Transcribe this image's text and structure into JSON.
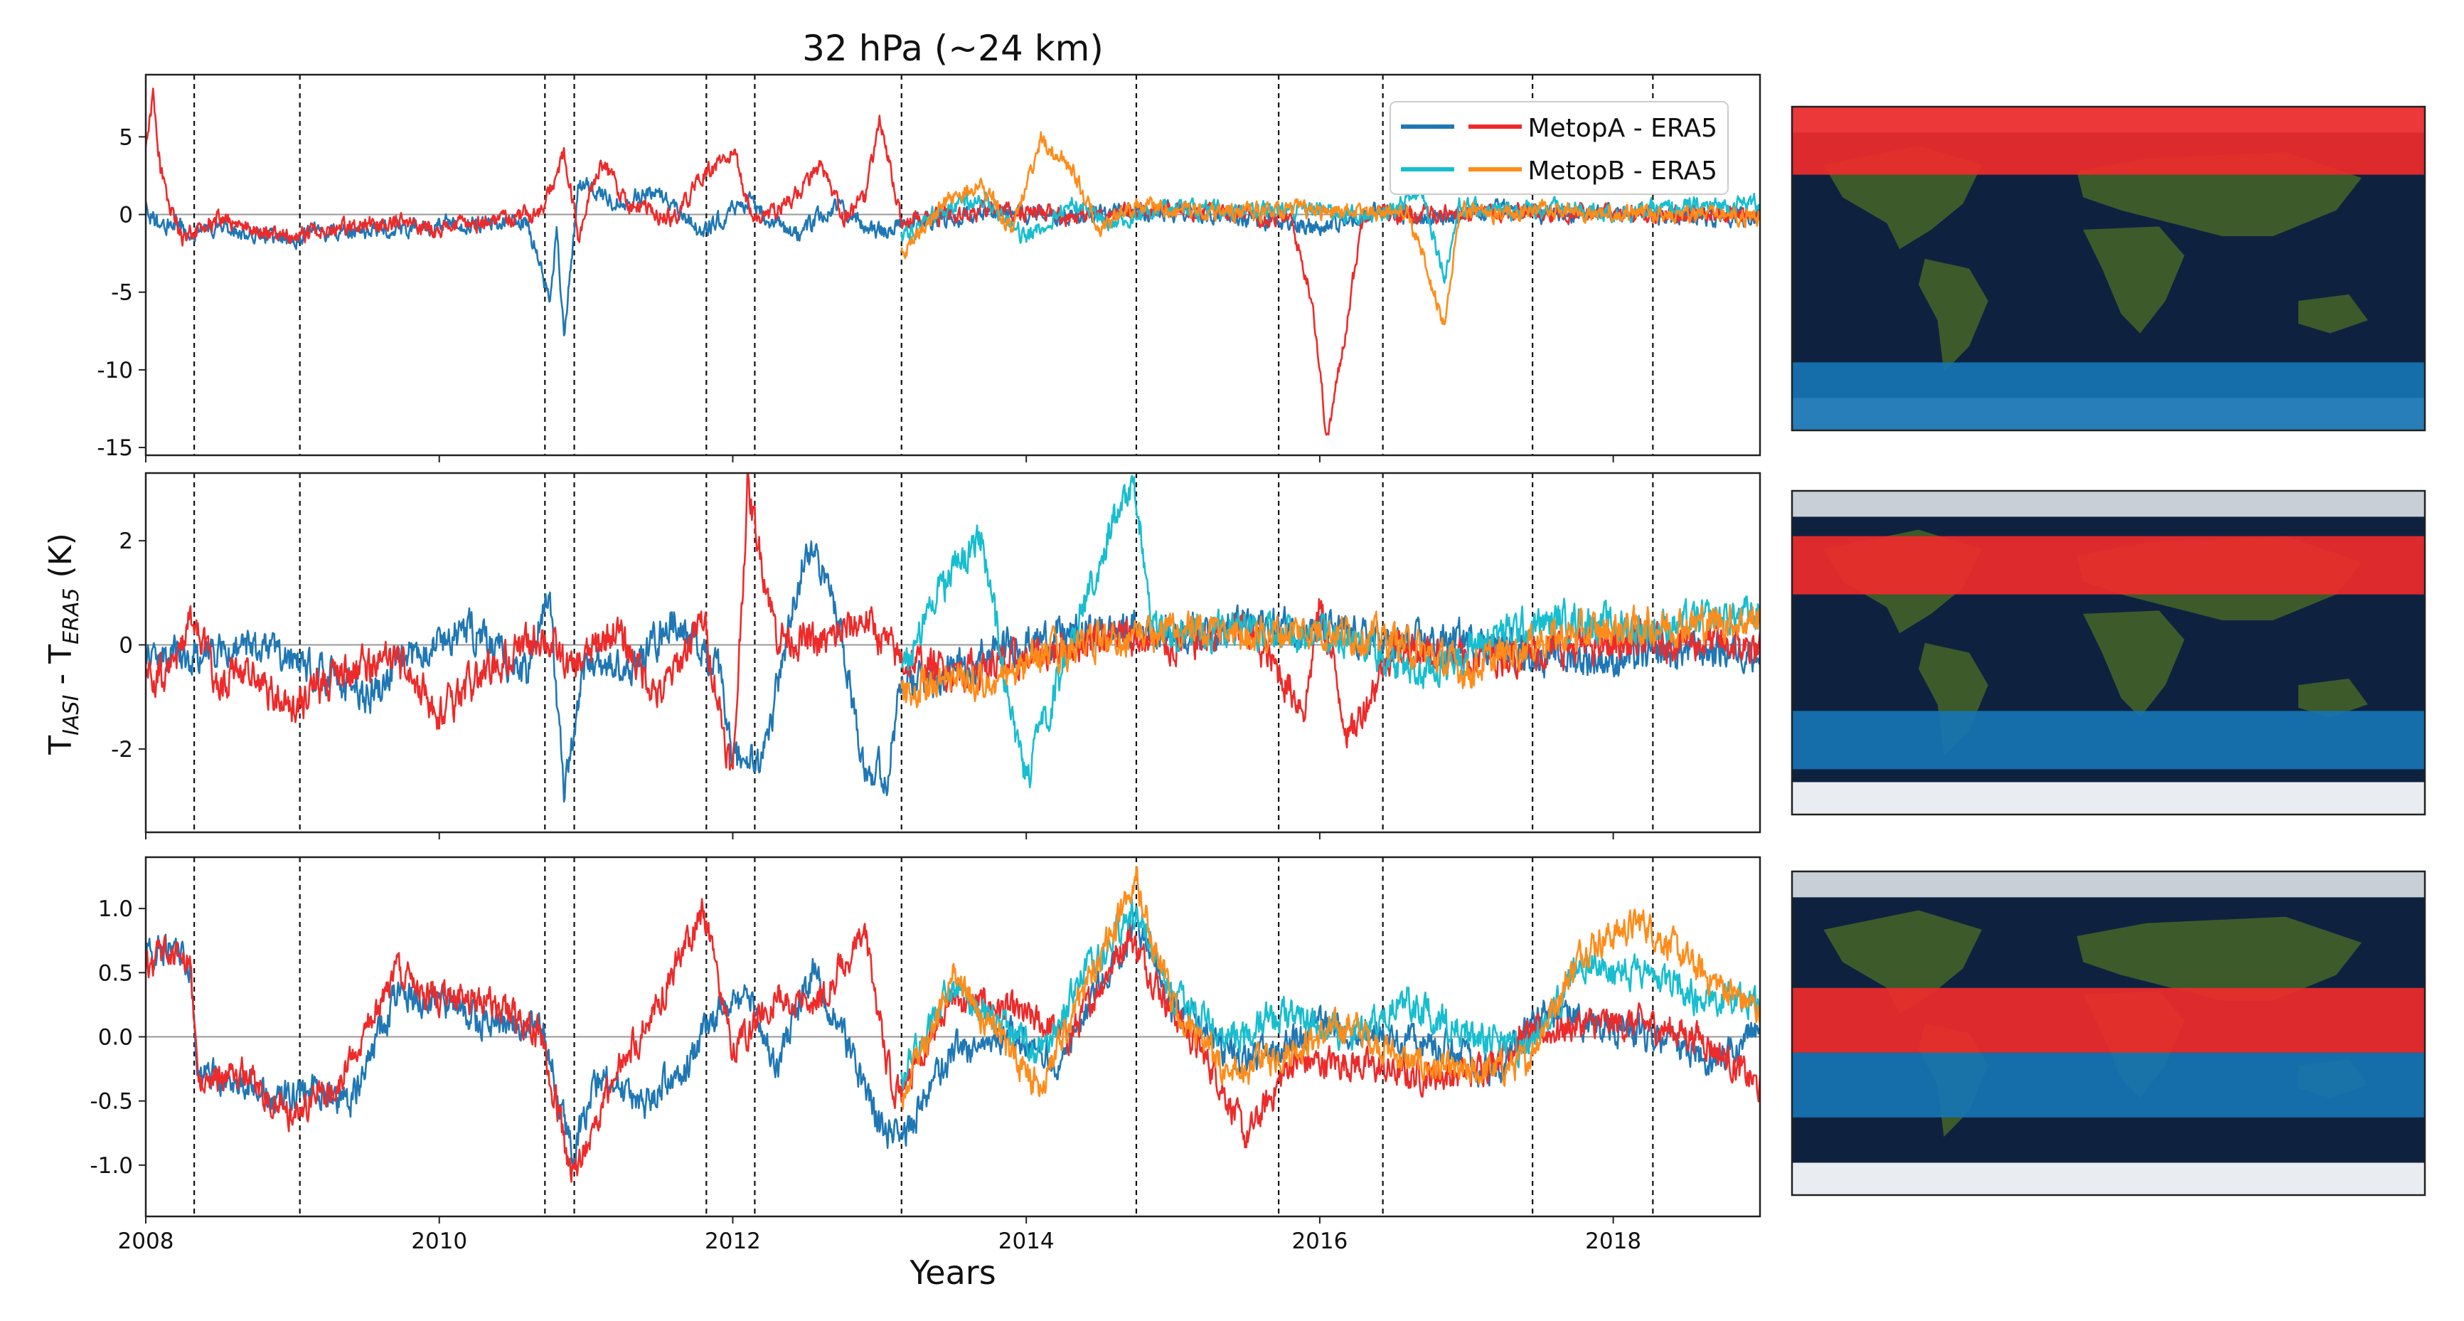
{
  "colors": {
    "metopA_ta": "#1f77b4",
    "metopA_ec": "#ee2a2a",
    "metopB_ta": "#17becf",
    "metopB_ec": "#ff8c1a",
    "zero_line": "#999999",
    "dashed": "#111111",
    "ocean": "#0e2240",
    "land": "#3d5a2b",
    "ice": "#e9edf2",
    "band_red": "#ef2b2b",
    "band_blue": "#1674b3"
  },
  "chart_data": {
    "type": "line",
    "title": "32 hPa (~24 km)",
    "xlabel": "Years",
    "ylabel_main": "T",
    "ylabel_sub1": "IASI",
    "ylabel_mid": " - T",
    "ylabel_sub2": "ERA5",
    "ylabel_unit": " (K)",
    "xlim": [
      2008.0,
      2019.0
    ],
    "xticks": [
      2008,
      2010,
      2012,
      2014,
      2016,
      2018
    ],
    "xtick_labels": [
      "2008",
      "2010",
      "2012",
      "2014",
      "2016",
      "2018"
    ],
    "event_lines": [
      2008.33,
      2009.05,
      2010.72,
      2010.92,
      2011.82,
      2012.15,
      2013.15,
      2014.75,
      2015.72,
      2016.43,
      2017.45,
      2018.27
    ],
    "legend": {
      "position": "top-right of panel 1",
      "entries": [
        {
          "label": "MetopA - ERA5",
          "colors": [
            "#1f77b4",
            "#ee2a2a"
          ]
        },
        {
          "label": "MetopB - ERA5",
          "colors": [
            "#17becf",
            "#ff8c1a"
          ]
        }
      ]
    },
    "panels": [
      {
        "name": "panel-1",
        "region": "north polar (red) and south polar (blue) bands",
        "ylim": [
          -15.5,
          9.0
        ],
        "yticks": [
          -15,
          -10,
          -5,
          0,
          5
        ],
        "ytick_labels": [
          "-15",
          "-10",
          "-5",
          "0",
          "5"
        ],
        "series": [
          {
            "name": "MetopA blue",
            "color": "#1f77b4",
            "x": [
              2008.0,
              2008.1,
              2008.2,
              2008.3,
              2008.5,
              2008.7,
              2008.9,
              2009.1,
              2009.4,
              2009.7,
              2010.0,
              2010.3,
              2010.6,
              2010.75,
              2010.8,
              2010.85,
              2010.95,
              2011.2,
              2011.5,
              2011.8,
              2012.1,
              2012.4,
              2012.7,
              2013.0,
              2013.15,
              2013.4,
              2013.8,
              2014.2,
              2014.6,
              2014.9,
              2015.3,
              2015.7,
              2016.0,
              2016.4,
              2016.8,
              2017.2,
              2017.6,
              2018.0,
              2018.4,
              2018.8,
              2019.0
            ],
            "values": [
              0.5,
              -1.0,
              -0.5,
              -1.3,
              -0.8,
              -1.0,
              -1.8,
              -1.2,
              -1.1,
              -0.9,
              -0.6,
              -0.7,
              -0.4,
              -5.5,
              -1.0,
              -8.0,
              2.0,
              0.8,
              1.5,
              -1.2,
              1.0,
              -1.5,
              0.5,
              -1.2,
              -0.5,
              -0.3,
              0.2,
              -0.3,
              0.2,
              0.1,
              0.0,
              -0.5,
              -0.8,
              0.3,
              -0.3,
              0.4,
              0.0,
              0.1,
              -0.1,
              -0.2,
              0.0
            ]
          },
          {
            "name": "MetopA red",
            "color": "#ee2a2a",
            "x": [
              2008.0,
              2008.05,
              2008.1,
              2008.15,
              2008.25,
              2008.5,
              2008.7,
              2009.0,
              2009.3,
              2009.6,
              2010.0,
              2010.4,
              2010.7,
              2010.85,
              2010.95,
              2011.1,
              2011.3,
              2011.6,
              2011.8,
              2012.0,
              2012.15,
              2012.4,
              2012.6,
              2012.75,
              2012.9,
              2013.0,
              2013.15,
              2013.4,
              2013.8,
              2014.3,
              2014.7,
              2015.1,
              2015.5,
              2015.8,
              2015.95,
              2016.05,
              2016.15,
              2016.3,
              2016.6,
              2017.0,
              2017.5,
              2018.0,
              2018.5,
              2019.0
            ],
            "values": [
              4.0,
              7.8,
              3.0,
              1.0,
              -1.5,
              -0.3,
              -0.8,
              -1.5,
              -0.8,
              -0.5,
              -0.9,
              -0.3,
              0.2,
              3.8,
              -1.5,
              3.5,
              0.5,
              -0.3,
              2.5,
              4.0,
              -0.5,
              1.0,
              3.0,
              -0.2,
              1.0,
              6.0,
              -0.5,
              -0.2,
              0.3,
              -0.1,
              0.2,
              0.3,
              0.1,
              -0.3,
              -5.5,
              -14.5,
              -9.0,
              0.3,
              -0.1,
              0.2,
              0.1,
              0.0,
              0.1,
              0.0
            ]
          },
          {
            "name": "MetopB cyan",
            "color": "#17becf",
            "x": [
              2013.15,
              2013.4,
              2013.7,
              2014.0,
              2014.3,
              2014.6,
              2014.9,
              2015.3,
              2015.7,
              2016.0,
              2016.4,
              2016.7,
              2016.85,
              2016.95,
              2017.2,
              2017.6,
              2018.0,
              2018.4,
              2018.8,
              2019.0
            ],
            "values": [
              -1.5,
              0.2,
              1.0,
              -1.5,
              0.8,
              -0.5,
              0.4,
              0.3,
              0.2,
              0.3,
              -0.2,
              1.5,
              -4.0,
              0.5,
              0.2,
              0.4,
              0.1,
              0.4,
              0.6,
              0.8
            ]
          },
          {
            "name": "MetopB orange",
            "color": "#ff8c1a",
            "x": [
              2013.15,
              2013.4,
              2013.7,
              2013.9,
              2014.1,
              2014.3,
              2014.5,
              2014.75,
              2015.0,
              2015.4,
              2015.8,
              2016.2,
              2016.6,
              2016.85,
              2016.95,
              2017.1,
              2017.5,
              2018.0,
              2018.5,
              2019.0
            ],
            "values": [
              -2.5,
              0.5,
              2.0,
              -1.0,
              4.8,
              3.0,
              -0.8,
              0.5,
              0.3,
              0.1,
              0.3,
              0.2,
              0.2,
              -7.2,
              0.2,
              0.1,
              0.3,
              0.1,
              0.0,
              -0.1
            ]
          }
        ]
      },
      {
        "name": "panel-2",
        "region": "northern mid-latitude (red) and southern mid-latitude (blue) bands",
        "ylim": [
          -3.6,
          3.3
        ],
        "yticks": [
          -2,
          0,
          2
        ],
        "ytick_labels": [
          "-2",
          "0",
          "2"
        ],
        "series": [
          {
            "name": "MetopA blue",
            "color": "#1f77b4",
            "x": [
              2008.0,
              2008.3,
              2008.7,
              2009.0,
              2009.5,
              2009.9,
              2010.2,
              2010.6,
              2010.75,
              2010.85,
              2011.0,
              2011.3,
              2011.6,
              2011.9,
              2012.0,
              2012.2,
              2012.5,
              2012.7,
              2012.9,
              2013.05,
              2013.15,
              2013.5,
              2013.9,
              2014.3,
              2014.75,
              2015.0,
              2015.5,
              2016.0,
              2016.5,
              2017.0,
              2017.5,
              2018.0,
              2018.5,
              2019.0
            ],
            "values": [
              -0.2,
              -0.2,
              0.0,
              -0.3,
              -1.0,
              0.0,
              0.3,
              -0.6,
              1.2,
              -3.0,
              -0.3,
              -0.5,
              0.5,
              -0.5,
              -2.2,
              -2.3,
              2.0,
              0.8,
              -2.3,
              -2.5,
              -0.8,
              -0.5,
              0.0,
              0.2,
              0.3,
              0.2,
              0.4,
              0.3,
              0.0,
              0.1,
              -0.2,
              -0.3,
              -0.1,
              -0.1
            ]
          },
          {
            "name": "MetopA red",
            "color": "#ee2a2a",
            "x": [
              2008.0,
              2008.2,
              2008.3,
              2008.5,
              2008.7,
              2009.0,
              2009.3,
              2009.7,
              2010.0,
              2010.3,
              2010.7,
              2010.9,
              2011.2,
              2011.5,
              2011.8,
              2012.0,
              2012.1,
              2012.3,
              2012.6,
              2012.9,
              2013.15,
              2013.5,
              2014.0,
              2014.5,
              2015.0,
              2015.5,
              2015.9,
              2016.0,
              2016.2,
              2016.5,
              2017.0,
              2017.5,
              2018.0,
              2018.5,
              2019.0
            ],
            "values": [
              -0.6,
              -0.5,
              0.6,
              -0.7,
              -0.5,
              -1.2,
              -0.6,
              -0.3,
              -1.3,
              -0.6,
              0.2,
              -0.5,
              0.3,
              -1.0,
              0.5,
              -2.6,
              3.0,
              0.2,
              0.0,
              0.5,
              -0.3,
              -0.5,
              -0.3,
              0.2,
              0.0,
              0.3,
              -1.2,
              0.8,
              -1.8,
              0.0,
              -0.3,
              -0.1,
              0.0,
              0.1,
              -0.1
            ]
          },
          {
            "name": "MetopB cyan",
            "color": "#17becf",
            "x": [
              2013.15,
              2013.4,
              2013.7,
              2013.9,
              2014.0,
              2014.3,
              2014.6,
              2014.75,
              2014.85,
              2015.2,
              2015.7,
              2016.2,
              2016.7,
              2017.2,
              2017.7,
              2018.2,
              2018.7,
              2019.0
            ],
            "values": [
              -0.6,
              1.0,
              2.0,
              -1.5,
              -2.6,
              0.0,
              2.5,
              2.9,
              0.3,
              0.2,
              0.3,
              0.1,
              -0.6,
              0.2,
              0.5,
              0.3,
              0.5,
              0.6
            ]
          },
          {
            "name": "MetopB orange",
            "color": "#ff8c1a",
            "x": [
              2013.15,
              2013.5,
              2013.8,
              2014.1,
              2014.4,
              2014.75,
              2015.0,
              2015.5,
              2016.0,
              2016.5,
              2017.0,
              2017.5,
              2018.0,
              2018.5,
              2019.0
            ],
            "values": [
              -1.0,
              -0.5,
              -0.8,
              -0.2,
              0.0,
              0.2,
              0.3,
              0.2,
              0.3,
              0.1,
              -0.5,
              0.1,
              0.3,
              0.4,
              0.5
            ]
          }
        ]
      },
      {
        "name": "panel-3",
        "region": "northern tropics (red) and southern tropics (blue) bands",
        "ylim": [
          -1.4,
          1.4
        ],
        "yticks": [
          -1.0,
          -0.5,
          0.0,
          0.5,
          1.0
        ],
        "ytick_labels": [
          "-1.0",
          "-0.5",
          "0.0",
          "0.5",
          "1.0"
        ],
        "series": [
          {
            "name": "MetopA blue",
            "color": "#1f77b4",
            "x": [
              2008.0,
              2008.15,
              2008.3,
              2008.35,
              2008.6,
              2008.9,
              2009.1,
              2009.4,
              2009.7,
              2010.0,
              2010.3,
              2010.7,
              2010.9,
              2011.1,
              2011.4,
              2011.7,
              2011.9,
              2012.1,
              2012.3,
              2012.55,
              2012.8,
              2013.0,
              2013.15,
              2013.5,
              2013.9,
              2014.2,
              2014.5,
              2014.75,
              2015.0,
              2015.5,
              2015.8,
              2016.1,
              2016.5,
              2016.9,
              2017.2,
              2017.5,
              2017.9,
              2018.3,
              2018.7,
              2019.0
            ],
            "values": [
              0.6,
              0.7,
              0.6,
              -0.3,
              -0.3,
              -0.5,
              -0.4,
              -0.5,
              0.3,
              0.3,
              0.1,
              0.1,
              -0.9,
              -0.3,
              -0.5,
              -0.2,
              0.2,
              0.3,
              -0.2,
              0.5,
              -0.1,
              -0.7,
              -0.8,
              -0.1,
              0.0,
              -0.2,
              0.4,
              0.9,
              0.2,
              -0.2,
              0.0,
              0.1,
              0.0,
              -0.1,
              -0.3,
              0.2,
              0.1,
              0.0,
              -0.2,
              0.1
            ]
          },
          {
            "name": "MetopA red",
            "color": "#ee2a2a",
            "x": [
              2008.0,
              2008.15,
              2008.3,
              2008.35,
              2008.7,
              2009.0,
              2009.3,
              2009.7,
              2010.0,
              2010.3,
              2010.7,
              2010.9,
              2011.2,
              2011.5,
              2011.8,
              2012.0,
              2012.3,
              2012.6,
              2012.9,
              2013.1,
              2013.15,
              2013.5,
              2013.9,
              2014.3,
              2014.7,
              2015.0,
              2015.3,
              2015.5,
              2015.8,
              2016.2,
              2016.6,
              2017.0,
              2017.4,
              2017.8,
              2018.2,
              2018.6,
              2019.0
            ],
            "values": [
              0.5,
              0.7,
              0.6,
              -0.3,
              -0.3,
              -0.6,
              -0.4,
              0.5,
              0.3,
              0.3,
              0.0,
              -1.1,
              -0.3,
              0.3,
              1.0,
              -0.1,
              0.3,
              0.3,
              0.8,
              -0.5,
              -0.4,
              0.3,
              0.2,
              0.0,
              0.8,
              0.2,
              -0.3,
              -0.8,
              -0.2,
              -0.2,
              -0.3,
              -0.3,
              0.0,
              0.1,
              0.1,
              0.0,
              -0.4
            ]
          },
          {
            "name": "MetopB cyan",
            "color": "#17becf",
            "x": [
              2013.15,
              2013.5,
              2013.8,
              2014.1,
              2014.4,
              2014.75,
              2015.0,
              2015.4,
              2015.8,
              2016.2,
              2016.6,
              2017.0,
              2017.4,
              2017.8,
              2018.2,
              2018.6,
              2019.0
            ],
            "values": [
              -0.3,
              0.4,
              0.1,
              -0.1,
              0.5,
              1.0,
              0.3,
              0.0,
              0.2,
              0.0,
              0.3,
              0.0,
              -0.1,
              0.6,
              0.5,
              0.3,
              0.3
            ]
          },
          {
            "name": "MetopB orange",
            "color": "#ff8c1a",
            "x": [
              2013.15,
              2013.5,
              2013.8,
              2014.1,
              2014.4,
              2014.75,
              2015.0,
              2015.4,
              2015.8,
              2016.2,
              2016.6,
              2017.0,
              2017.4,
              2017.8,
              2018.2,
              2018.6,
              2019.0
            ],
            "values": [
              -0.5,
              0.5,
              0.0,
              -0.4,
              0.4,
              1.2,
              0.2,
              -0.3,
              -0.1,
              0.1,
              -0.2,
              -0.3,
              -0.2,
              0.7,
              0.9,
              0.5,
              0.2
            ]
          }
        ]
      }
    ]
  }
}
